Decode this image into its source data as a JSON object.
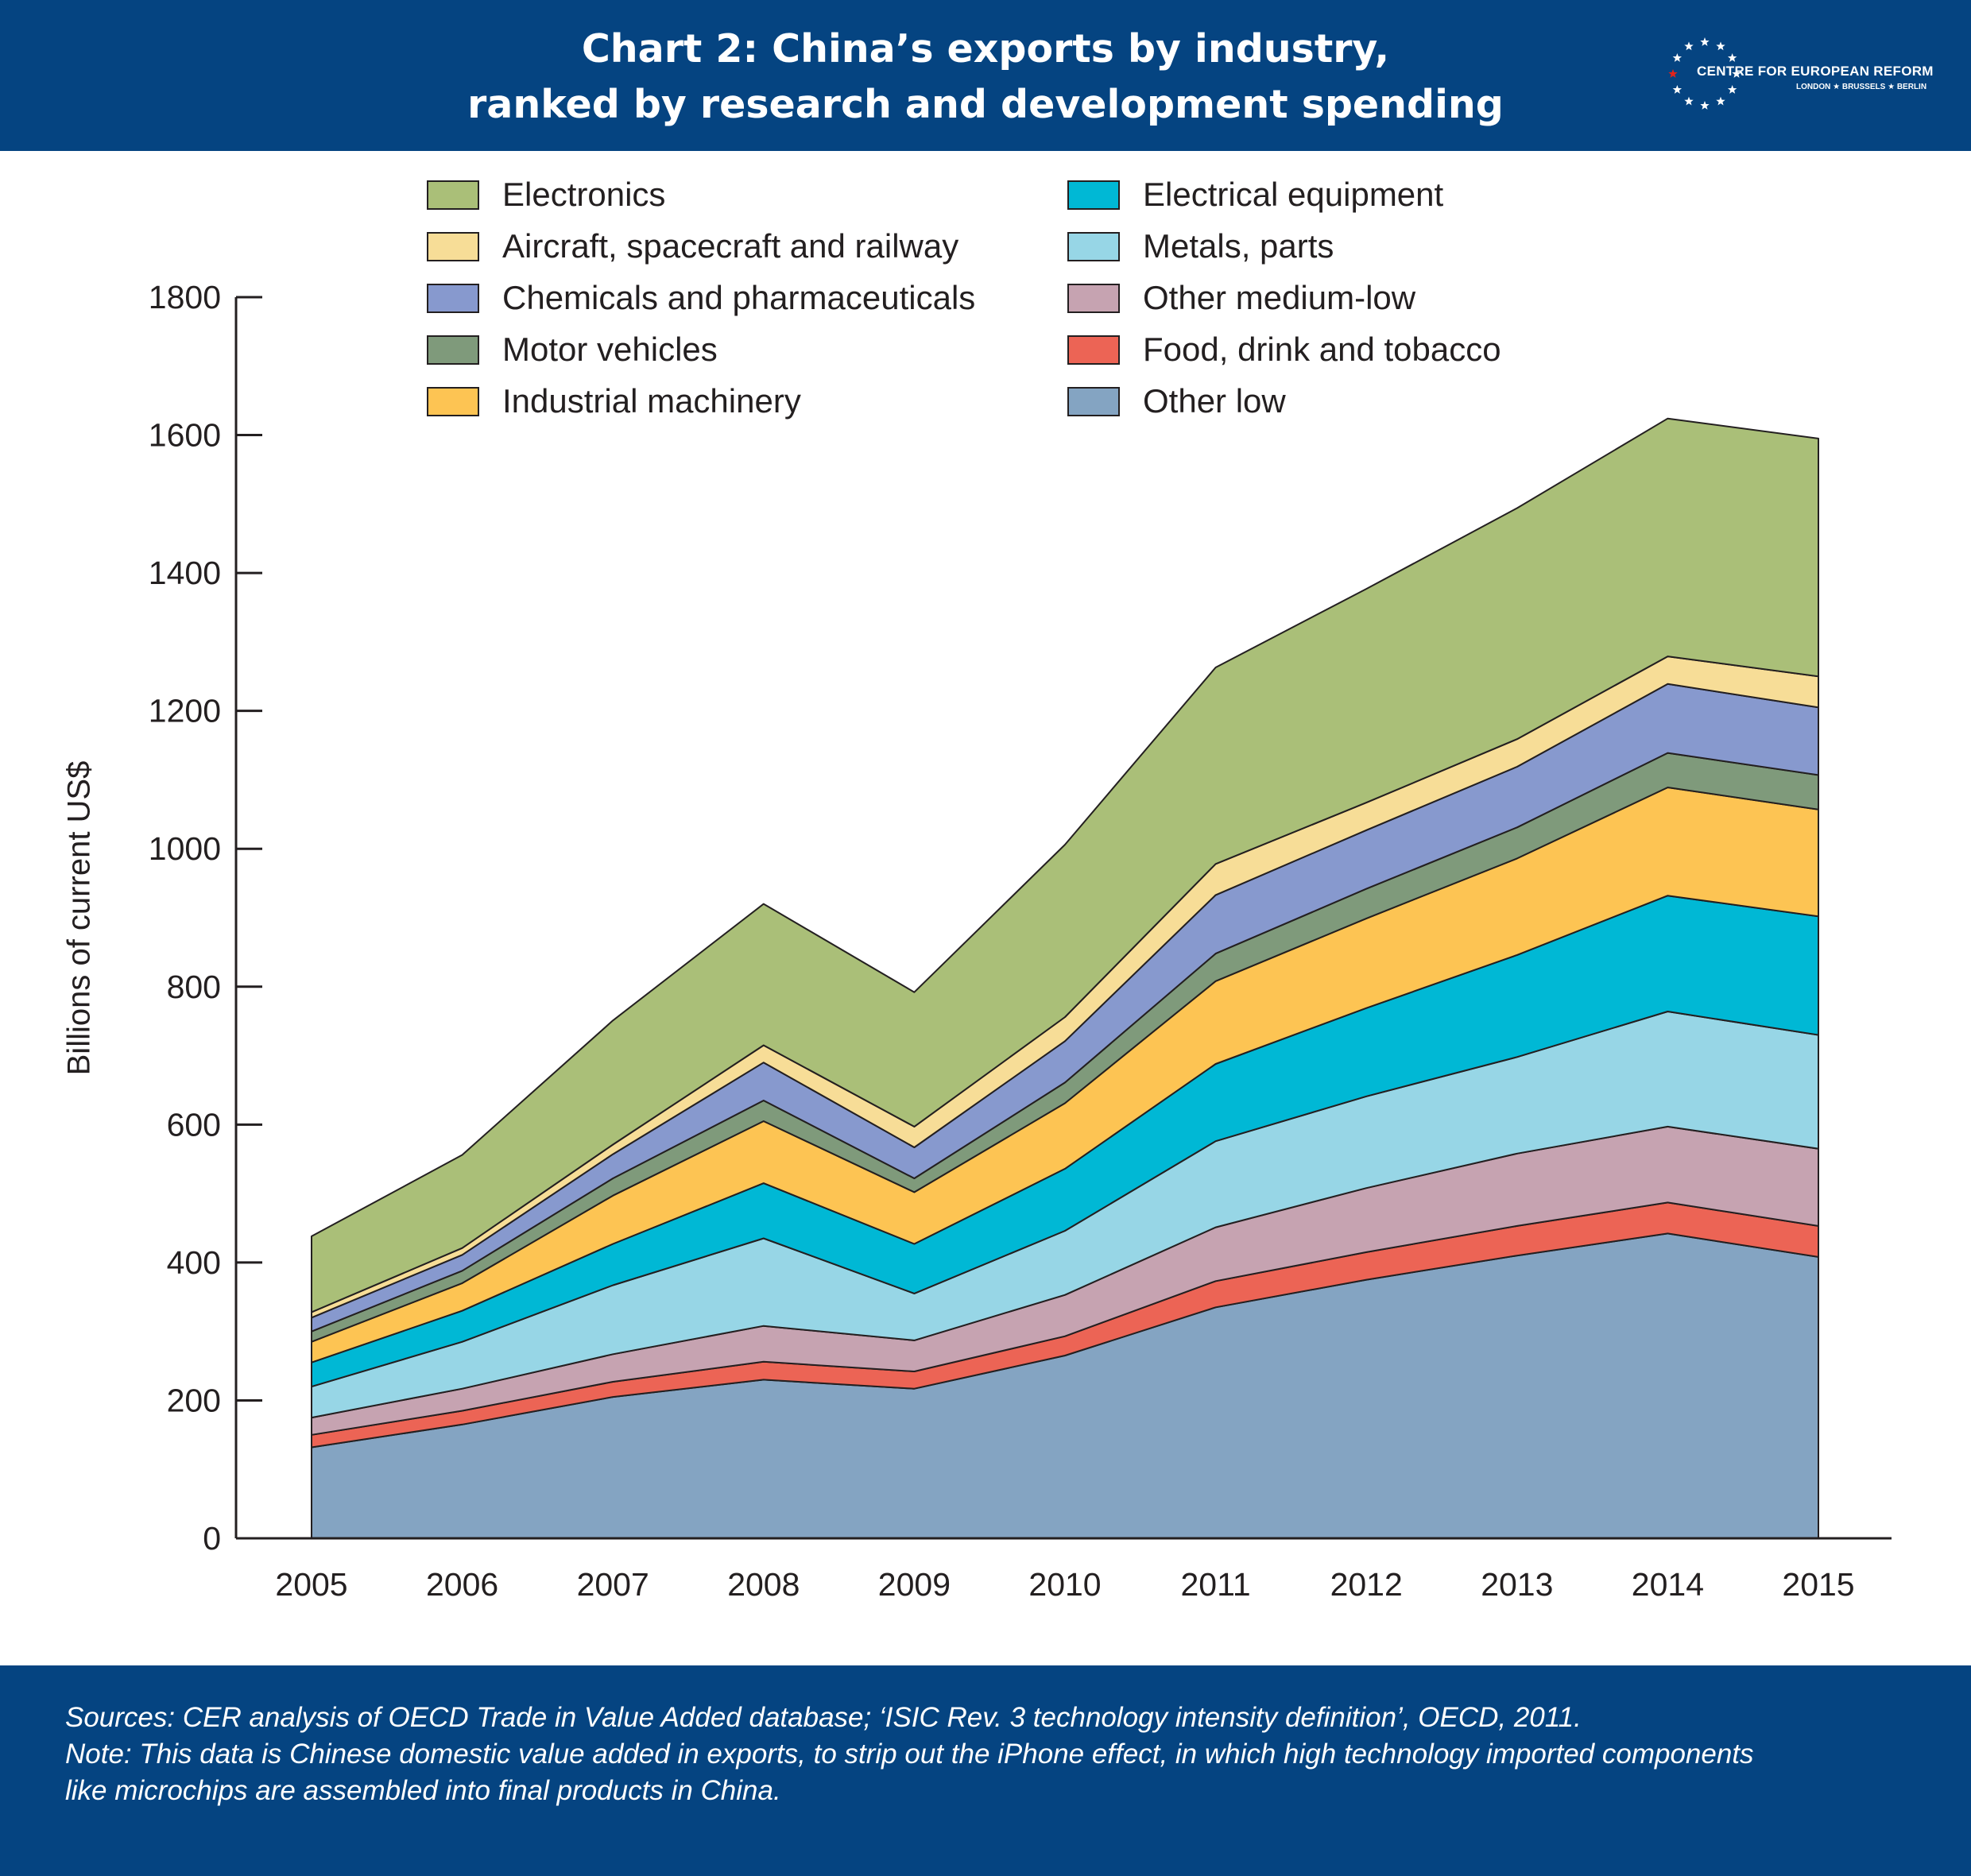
{
  "header": {
    "title_line1": "Chart 2: China’s exports by industry,",
    "title_line2": "ranked by research and development spending",
    "logo_name": "CENTRE FOR EUROPEAN REFORM",
    "logo_cities": "LONDON ★ BRUSSELS ★ BERLIN",
    "logo_icon": "eu-star-circle-icon"
  },
  "footer": {
    "sources": "Sources: CER analysis of OECD Trade in Value Added database; ‘ISIC Rev. 3 technology intensity definition’, OECD, 2011.",
    "note_line1": "Note: This data is Chinese domestic value added in exports, to strip out the iPhone effect, in which high technology imported components",
    "note_line2": "like microchips are assembled into final products in China."
  },
  "colors": {
    "header_bg": "#054481",
    "outline": "#231f20"
  },
  "chart_data": {
    "type": "area",
    "stacked": true,
    "title": "Chart 2: China’s exports by industry, ranked by research and development spending",
    "xlabel": "",
    "ylabel": "Billions of current US$",
    "ylim": [
      0,
      1800
    ],
    "yticks": [
      0,
      200,
      400,
      600,
      800,
      1000,
      1200,
      1400,
      1600,
      1800
    ],
    "categories": [
      "2005",
      "2006",
      "2007",
      "2008",
      "2009",
      "2010",
      "2011",
      "2012",
      "2013",
      "2014",
      "2015"
    ],
    "grid": false,
    "legend_position": "top",
    "series": [
      {
        "name": "Other low",
        "color": "#84a4c2",
        "values": [
          132,
          165,
          205,
          230,
          217,
          265,
          335,
          375,
          410,
          442,
          408
        ]
      },
      {
        "name": "Food, drink and tobacco",
        "color": "#ec6455",
        "values": [
          18,
          20,
          22,
          26,
          25,
          28,
          38,
          40,
          43,
          45,
          45
        ]
      },
      {
        "name": "Other medium-low",
        "color": "#c6a3b1",
        "values": [
          25,
          32,
          40,
          52,
          45,
          60,
          78,
          93,
          105,
          110,
          112
        ]
      },
      {
        "name": "Metals, parts",
        "color": "#97d6e6",
        "values": [
          45,
          68,
          100,
          127,
          68,
          93,
          125,
          133,
          140,
          167,
          165
        ]
      },
      {
        "name": "Electrical equipment",
        "color": "#00b8d5",
        "values": [
          35,
          45,
          60,
          80,
          72,
          90,
          112,
          128,
          148,
          168,
          172
        ]
      },
      {
        "name": "Industrial machinery",
        "color": "#fdc453",
        "values": [
          30,
          40,
          70,
          90,
          75,
          95,
          120,
          130,
          140,
          157,
          155
        ]
      },
      {
        "name": "Motor vehicles",
        "color": "#7f9a7b",
        "values": [
          15,
          18,
          25,
          30,
          20,
          30,
          40,
          43,
          45,
          50,
          50
        ]
      },
      {
        "name": "Chemicals and pharmaceuticals",
        "color": "#8799ce",
        "values": [
          20,
          23,
          35,
          55,
          45,
          60,
          85,
          85,
          88,
          100,
          98
        ]
      },
      {
        "name": "Aircraft, spacecraft and railway",
        "color": "#f7dd97",
        "values": [
          8,
          10,
          14,
          25,
          30,
          35,
          45,
          40,
          40,
          40,
          45
        ]
      },
      {
        "name": "Electronics",
        "color": "#aabf78",
        "values": [
          110,
          135,
          180,
          205,
          195,
          250,
          285,
          310,
          335,
          345,
          345
        ]
      }
    ],
    "legend_order": [
      "Electronics",
      "Electrical equipment",
      "Aircraft, spacecraft and railway",
      "Metals, parts",
      "Chemicals and pharmaceuticals",
      "Other medium-low",
      "Motor vehicles",
      "Food, drink and tobacco",
      "Industrial machinery",
      "Other low"
    ]
  }
}
